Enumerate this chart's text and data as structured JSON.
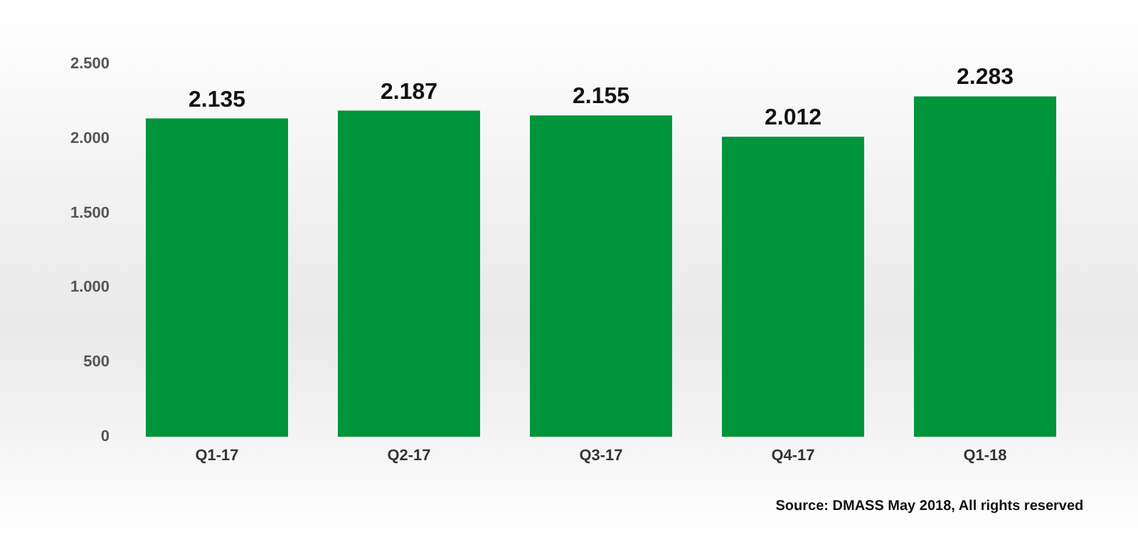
{
  "chart_data": {
    "type": "bar",
    "categories": [
      "Q1-17",
      "Q2-17",
      "Q3-17",
      "Q4-17",
      "Q1-18"
    ],
    "values": [
      2135,
      2187,
      2155,
      2012,
      2283
    ],
    "value_labels": [
      "2.135",
      "2.187",
      "2.155",
      "2.012",
      "2.283"
    ],
    "color": "#00953a",
    "ylim": [
      0,
      2500
    ],
    "yticks": [
      {
        "value": 0,
        "label": "0"
      },
      {
        "value": 500,
        "label": "500"
      },
      {
        "value": 1000,
        "label": "1.000"
      },
      {
        "value": 1500,
        "label": "1.500"
      },
      {
        "value": 2000,
        "label": "2.000"
      },
      {
        "value": 2500,
        "label": "2.500"
      }
    ],
    "grid": false,
    "annotations": [
      "Source: DMASS May 2018, All rights reserved"
    ]
  }
}
